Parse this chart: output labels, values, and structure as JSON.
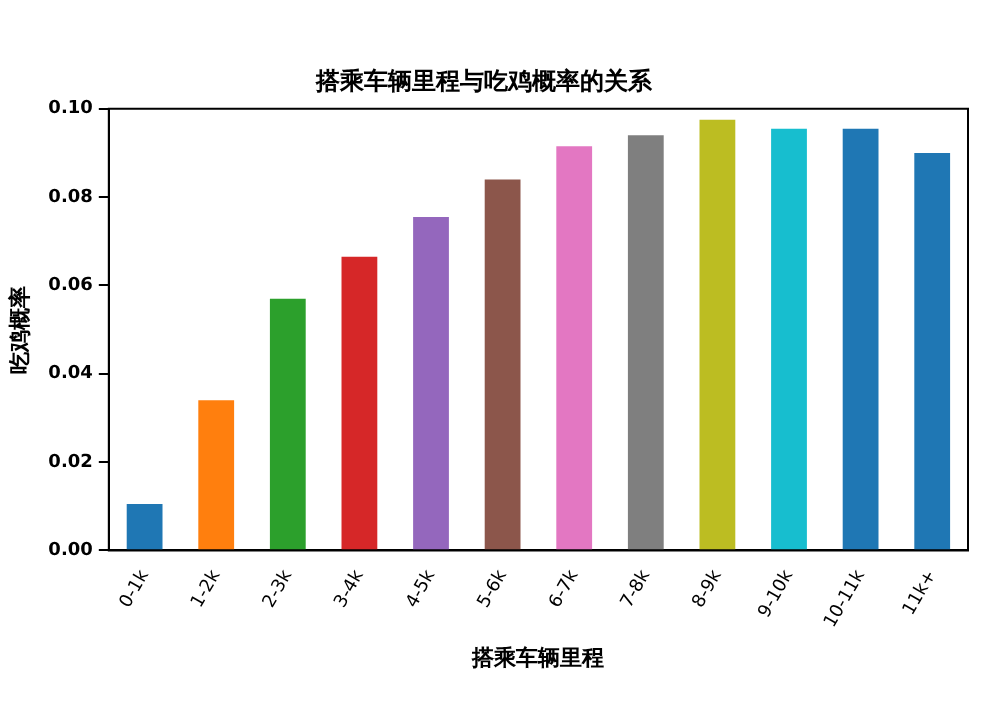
{
  "chart_data": {
    "type": "bar",
    "title": "搭乘车辆里程与吃鸡概率的关系",
    "xlabel": "搭乘车辆里程",
    "ylabel": "吃鸡概率",
    "categories": [
      "0-1k",
      "1-2k",
      "2-3k",
      "3-4k",
      "4-5k",
      "5-6k",
      "6-7k",
      "7-8k",
      "8-9k",
      "9-10k",
      "10-11k",
      "11k+"
    ],
    "values": [
      0.0105,
      0.034,
      0.057,
      0.0665,
      0.0755,
      0.084,
      0.0915,
      0.094,
      0.0975,
      0.0955,
      0.0955,
      0.09
    ],
    "colors": [
      "#1f77b4",
      "#ff7f0e",
      "#2ca02c",
      "#d62728",
      "#9467bd",
      "#8c564b",
      "#e377c2",
      "#7f7f7f",
      "#bcbd22",
      "#17becf",
      "#1f77b4",
      "#1f77b4"
    ],
    "ylim": [
      0,
      0.1
    ],
    "yticks": [
      {
        "value": 0,
        "label": "0.00"
      },
      {
        "value": 0.02,
        "label": "0.02"
      },
      {
        "value": 0.04,
        "label": "0.04"
      },
      {
        "value": 0.06,
        "label": "0.06"
      },
      {
        "value": 0.08,
        "label": "0.08"
      },
      {
        "value": 0.1,
        "label": "0.10"
      }
    ],
    "grid": false,
    "legend": false
  }
}
